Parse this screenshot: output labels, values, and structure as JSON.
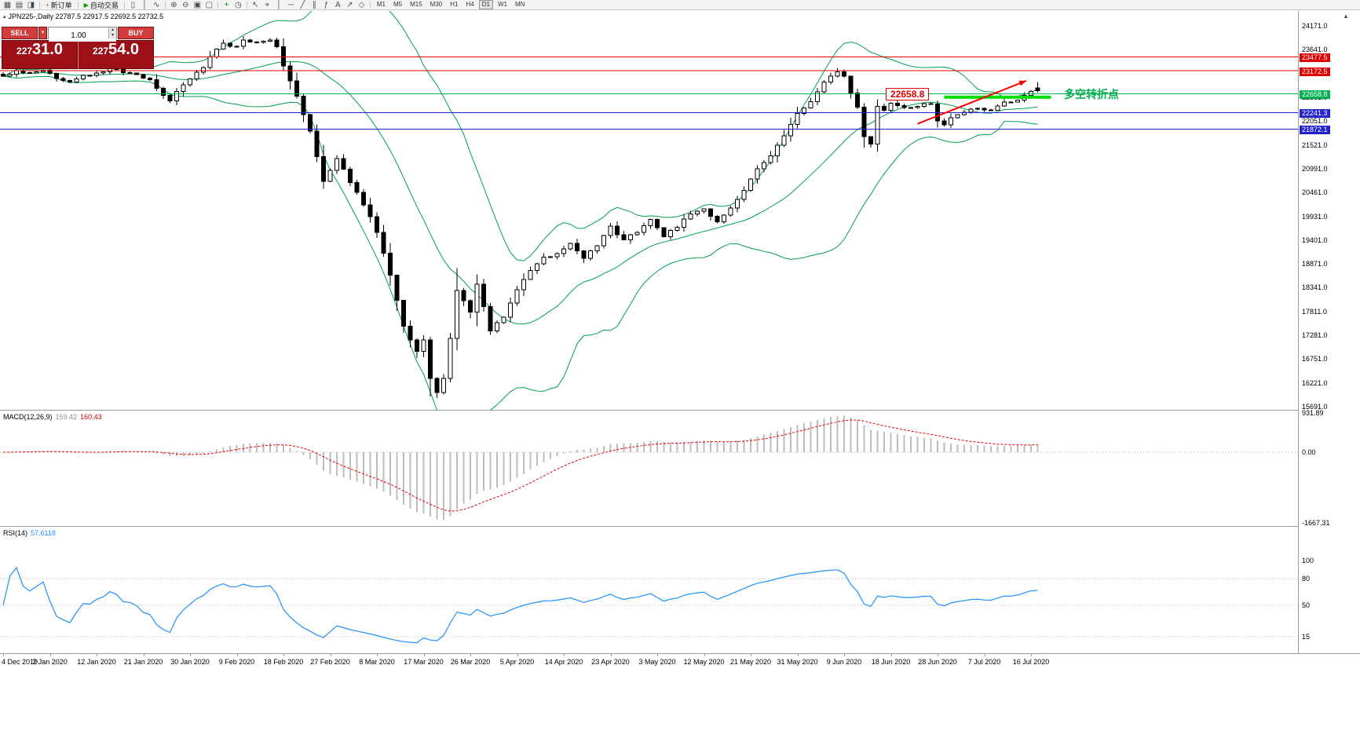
{
  "toolbar": {
    "items": [
      {
        "kind": "icon",
        "name": "new-chart-icon",
        "glyph": "▦"
      },
      {
        "kind": "icon",
        "name": "chart-profiles-icon",
        "glyph": "▤"
      },
      {
        "kind": "icon",
        "name": "chart-templates-icon",
        "glyph": "◨"
      },
      {
        "kind": "sep"
      },
      {
        "kind": "button",
        "name": "new-order-button",
        "glyph": "+",
        "glyph_color": "#b07800",
        "label": "新订单"
      },
      {
        "kind": "sep"
      },
      {
        "kind": "button",
        "name": "autotrade-button",
        "glyph": "▶",
        "glyph_color": "#00a000",
        "label": "自动交易"
      },
      {
        "kind": "sep"
      },
      {
        "kind": "icon",
        "name": "candlestick-view-icon",
        "glyph": "▯"
      },
      {
        "kind": "icon",
        "name": "bar-view-icon",
        "glyph": "│"
      },
      {
        "kind": "icon",
        "name": "line-view-icon",
        "glyph": "∿"
      },
      {
        "kind": "sep"
      },
      {
        "kind": "icon",
        "name": "zoom-in-icon",
        "glyph": "⊕"
      },
      {
        "kind": "icon",
        "name": "zoom-out-icon",
        "glyph": "⊖"
      },
      {
        "kind": "icon",
        "name": "tile-windows-icon",
        "glyph": "▣"
      },
      {
        "kind": "icon",
        "name": "cascade-windows-icon",
        "glyph": "▢"
      },
      {
        "kind": "sep"
      },
      {
        "kind": "icon",
        "name": "indicators-add-icon",
        "glyph": "+",
        "color": "#00a000"
      },
      {
        "kind": "icon",
        "name": "periods-icon",
        "glyph": "◷"
      },
      {
        "kind": "sep"
      },
      {
        "kind": "icon",
        "name": "cursor-icon",
        "glyph": "↖"
      },
      {
        "kind": "icon",
        "name": "crosshair-icon",
        "glyph": "⌖"
      },
      {
        "kind": "icon",
        "name": "vertical-line-icon",
        "glyph": "│"
      },
      {
        "kind": "icon",
        "name": "horizontal-line-icon",
        "glyph": "─"
      },
      {
        "kind": "icon",
        "name": "trendline-icon",
        "glyph": "╱"
      },
      {
        "kind": "icon",
        "name": "channel-icon",
        "glyph": "∥"
      },
      {
        "kind": "icon",
        "name": "fibonacci-icon",
        "glyph": "ƒ"
      },
      {
        "kind": "icon",
        "name": "text-object-icon",
        "glyph": "A"
      },
      {
        "kind": "icon",
        "name": "arrow-object-icon",
        "glyph": "↗"
      },
      {
        "kind": "icon",
        "name": "shapes-icon",
        "glyph": "◇"
      },
      {
        "kind": "sep"
      },
      {
        "kind": "tf",
        "label": "M1"
      },
      {
        "kind": "tf",
        "label": "M5"
      },
      {
        "kind": "tf",
        "label": "M15"
      },
      {
        "kind": "tf",
        "label": "M30"
      },
      {
        "kind": "tf",
        "label": "H1"
      },
      {
        "kind": "tf",
        "label": "H4"
      },
      {
        "kind": "tf",
        "label": "D1"
      },
      {
        "kind": "tf",
        "label": "W1"
      },
      {
        "kind": "tf",
        "label": "MN"
      }
    ],
    "active_timeframe": "D1"
  },
  "chart": {
    "title_text": "JPN225-,Daily  22787.5 22917.5 22692.5 22732.5",
    "symbol": "JPN225-",
    "period": "Daily",
    "open": "22787.5",
    "high": "22917.5",
    "low": "22692.5",
    "close": "22732.5"
  },
  "one_click": {
    "sell_label": "SELL",
    "buy_label": "BUY",
    "volume": "1.00",
    "sell_price": "22731.0",
    "buy_price": "22754.0",
    "sell_price_prefix": "227",
    "sell_price_big": "31.0",
    "buy_price_prefix": "227",
    "buy_price_big": "54.0"
  },
  "price_axis": {
    "ticks": [
      "24171.0",
      "23641.0",
      "23111.0",
      "22581.0",
      "22051.0",
      "21521.0",
      "20991.0",
      "20461.0",
      "19931.0",
      "19401.0",
      "18871.0",
      "18341.0",
      "17811.0",
      "17281.0",
      "16751.0",
      "16221.0",
      "15691.0"
    ]
  },
  "levels": [
    {
      "price": 23477.5,
      "label": "23477.5",
      "color": "#dd0000"
    },
    {
      "price": 23172.5,
      "label": "23172.5",
      "color": "#dd0000"
    },
    {
      "price": 22658.8,
      "label": "22658.8",
      "color": "#00b050"
    },
    {
      "price": 22241.3,
      "label": "22241.3",
      "color": "#2323cc"
    },
    {
      "price": 21872.1,
      "label": "21872.1",
      "color": "#2323cc"
    }
  ],
  "annotations": {
    "callout_text": "22658.8",
    "note_text": "多空转折点",
    "note_color": "#00b050",
    "trendline": {
      "bar1": 137,
      "price1": 21990,
      "bar2": 153.3,
      "price2": 22950,
      "color": "#ff0000"
    },
    "green_segment": {
      "price": 22585,
      "bar1": 141,
      "bar2": 157,
      "color": "#00dd00"
    }
  },
  "macd": {
    "label": "MACD(12,26,9)",
    "value_main": "159.42",
    "value_signal": "160.43",
    "axis_ticks": [
      "931.89",
      "0.00",
      "-1667.31"
    ]
  },
  "rsi": {
    "label": "RSI(14)",
    "value": "57.6118",
    "axis_ticks": [
      "100",
      "80",
      "50",
      "15"
    ],
    "level_lines": [
      80,
      50,
      15
    ]
  },
  "date_axis": [
    [
      0,
      "4 Dec 2019"
    ],
    [
      7,
      "2 Jan 2020"
    ],
    [
      14,
      "12 Jan 2020"
    ],
    [
      21,
      "21 Jan 2020"
    ],
    [
      28,
      "30 Jan 2020"
    ],
    [
      35,
      "9 Feb 2020"
    ],
    [
      42,
      "18 Feb 2020"
    ],
    [
      49,
      "27 Feb 2020"
    ],
    [
      56,
      "8 Mar 2020"
    ],
    [
      63,
      "17 Mar 2020"
    ],
    [
      70,
      "26 Mar 2020"
    ],
    [
      77,
      "5 Apr 2020"
    ],
    [
      84,
      "14 Apr 2020"
    ],
    [
      91,
      "23 Apr 2020"
    ],
    [
      98,
      "3 May 2020"
    ],
    [
      105,
      "12 May 2020"
    ],
    [
      112,
      "21 May 2020"
    ],
    [
      119,
      "31 May 2020"
    ],
    [
      126,
      "9 Jun 2020"
    ],
    [
      133,
      "18 Jun 2020"
    ],
    [
      140,
      "28 Jun 2020"
    ],
    [
      147,
      "7 Jul 2020"
    ],
    [
      154,
      "16 Jul 2020"
    ]
  ],
  "chart_data": {
    "type": "candlestick",
    "symbol": "JPN225-",
    "timeframe": "Daily",
    "bars_total": 156,
    "price_axis_range": [
      15691,
      24171
    ],
    "close_anchors": [
      [
        0,
        23050
      ],
      [
        2,
        23150
      ],
      [
        4,
        23100
      ],
      [
        6,
        23180
      ],
      [
        8,
        23000
      ],
      [
        10,
        22900
      ],
      [
        12,
        23050
      ],
      [
        14,
        23120
      ],
      [
        16,
        23220
      ],
      [
        18,
        23150
      ],
      [
        20,
        23100
      ],
      [
        22,
        22950
      ],
      [
        24,
        22650
      ],
      [
        25,
        22500
      ],
      [
        26,
        22700
      ],
      [
        28,
        23000
      ],
      [
        30,
        23250
      ],
      [
        31,
        23500
      ],
      [
        33,
        23780
      ],
      [
        35,
        23700
      ],
      [
        36,
        23850
      ],
      [
        38,
        23780
      ],
      [
        40,
        23850
      ],
      [
        41,
        23700
      ],
      [
        42,
        23300
      ],
      [
        44,
        22600
      ],
      [
        46,
        21800
      ],
      [
        48,
        20700
      ],
      [
        50,
        21200
      ],
      [
        52,
        20700
      ],
      [
        54,
        20200
      ],
      [
        56,
        19600
      ],
      [
        58,
        18600
      ],
      [
        60,
        17500
      ],
      [
        62,
        16900
      ],
      [
        63,
        17200
      ],
      [
        64,
        16300
      ],
      [
        65,
        16000
      ],
      [
        66,
        16300
      ],
      [
        67,
        17200
      ],
      [
        68,
        18300
      ],
      [
        70,
        17800
      ],
      [
        71,
        18400
      ],
      [
        73,
        17400
      ],
      [
        75,
        17700
      ],
      [
        77,
        18300
      ],
      [
        79,
        18700
      ],
      [
        81,
        19000
      ],
      [
        83,
        19100
      ],
      [
        85,
        19300
      ],
      [
        87,
        19000
      ],
      [
        89,
        19300
      ],
      [
        91,
        19700
      ],
      [
        93,
        19400
      ],
      [
        95,
        19600
      ],
      [
        97,
        19850
      ],
      [
        99,
        19500
      ],
      [
        101,
        19700
      ],
      [
        103,
        20000
      ],
      [
        105,
        20100
      ],
      [
        107,
        19800
      ],
      [
        109,
        20100
      ],
      [
        111,
        20500
      ],
      [
        113,
        21000
      ],
      [
        115,
        21300
      ],
      [
        117,
        21700
      ],
      [
        119,
        22200
      ],
      [
        121,
        22500
      ],
      [
        123,
        22900
      ],
      [
        125,
        23150
      ],
      [
        126,
        23050
      ],
      [
        127,
        22700
      ],
      [
        128,
        22350
      ],
      [
        129,
        21700
      ],
      [
        130,
        21550
      ],
      [
        131,
        22400
      ],
      [
        132,
        22300
      ],
      [
        133,
        22450
      ],
      [
        135,
        22350
      ],
      [
        137,
        22400
      ],
      [
        139,
        22450
      ],
      [
        140,
        22050
      ],
      [
        141,
        21980
      ],
      [
        142,
        22150
      ],
      [
        144,
        22250
      ],
      [
        146,
        22350
      ],
      [
        148,
        22300
      ],
      [
        150,
        22450
      ],
      [
        152,
        22550
      ],
      [
        154,
        22700
      ],
      [
        155,
        22732.5
      ]
    ],
    "extremes": [
      [
        36,
        "high",
        23940
      ],
      [
        40,
        "high",
        23900
      ],
      [
        65,
        "low",
        15880
      ],
      [
        125,
        "high",
        23230
      ],
      [
        130,
        "low",
        21460
      ]
    ],
    "last_bar_ohlc": [
      22787.5,
      22917.5,
      22692.5,
      22732.5
    ],
    "indicators": [
      {
        "name": "Bollinger Bands",
        "period": 20,
        "deviation": 2,
        "color": "#00a050"
      },
      {
        "name": "MACD",
        "fast": 12,
        "slow": 26,
        "signal": 9,
        "current": [
          159.42,
          160.43
        ]
      },
      {
        "name": "RSI",
        "period": 14,
        "current": 57.6118
      }
    ]
  }
}
